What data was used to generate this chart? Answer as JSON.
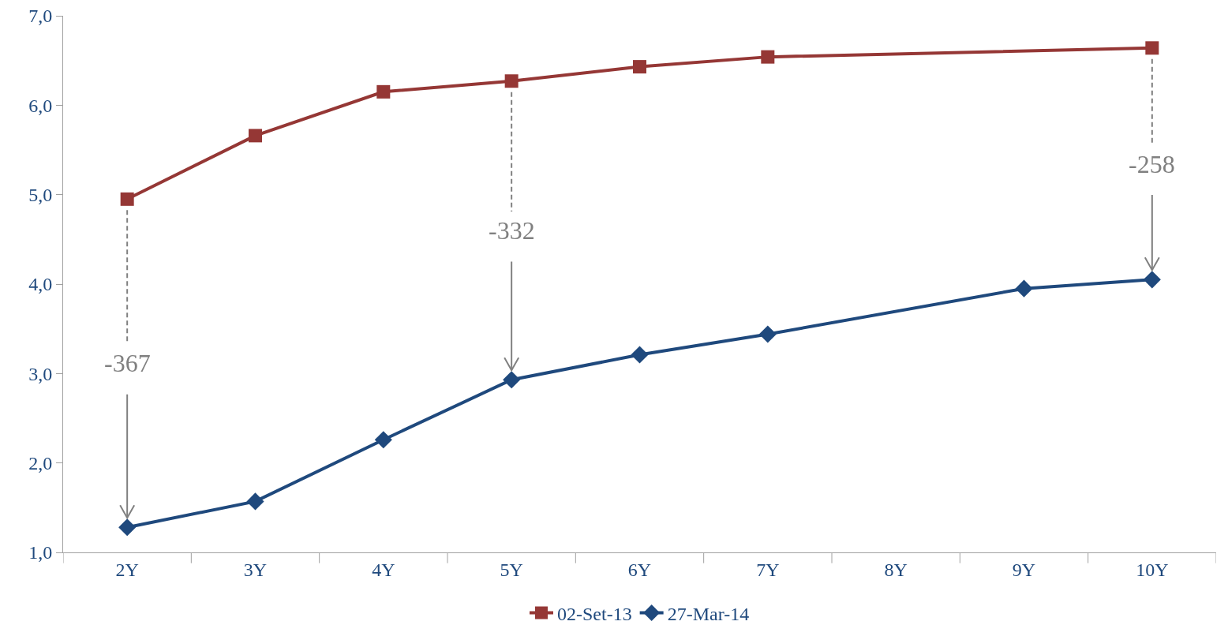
{
  "chart_data": {
    "type": "line",
    "categories": [
      "2Y",
      "3Y",
      "4Y",
      "5Y",
      "6Y",
      "7Y",
      "8Y",
      "9Y",
      "10Y"
    ],
    "series": [
      {
        "name": "02-Set-13",
        "color": "#953735",
        "marker": "square",
        "values": [
          4.95,
          5.66,
          6.15,
          6.27,
          6.43,
          6.54,
          null,
          null,
          6.64
        ]
      },
      {
        "name": "27-Mar-14",
        "color": "#1f497d",
        "marker": "diamond",
        "values": [
          1.28,
          1.57,
          2.26,
          2.93,
          3.21,
          3.44,
          null,
          3.95,
          4.05
        ]
      }
    ],
    "ylim": [
      1,
      7
    ],
    "yticks": [
      {
        "value": 1,
        "label": "1,0"
      },
      {
        "value": 2,
        "label": "2,0"
      },
      {
        "value": 3,
        "label": "3,0"
      },
      {
        "value": 4,
        "label": "4,0"
      },
      {
        "value": 5,
        "label": "5,0"
      },
      {
        "value": 6,
        "label": "6,0"
      },
      {
        "value": 7,
        "label": "7,0"
      }
    ],
    "annotations": [
      {
        "text": "-367",
        "x": "2Y",
        "y": 1.28
      },
      {
        "text": "-332",
        "x": "5Y",
        "y": 2.93
      },
      {
        "text": "-258",
        "x": "10Y",
        "y": 4.05
      }
    ],
    "grid": false,
    "legend": "bottom"
  }
}
